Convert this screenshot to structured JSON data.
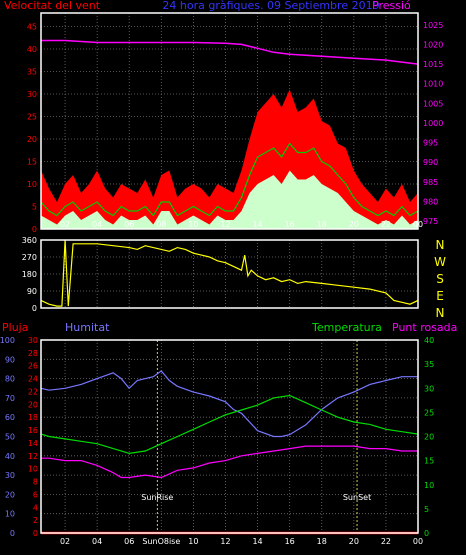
{
  "colors": {
    "background": "#000000",
    "frame": "#ffffff",
    "grid": "#6f6f6f",
    "wind_max": "#ff0000",
    "wind_avg": "#00cc00",
    "wind_min": "#ccffcc",
    "pressure": "#ff00ff",
    "title": "#3333ff",
    "direction": "#ffff00",
    "rain": "#ff0000",
    "humidity": "#7777ff",
    "temperature": "#00dd00",
    "dewpoint": "#ff00ff",
    "sun_line": "#ffff66"
  },
  "chart_data": [
    {
      "type": "line",
      "id": "wind-pressure",
      "title": "24 hora gràfiques. 09 Septiembre 2019",
      "left_label": "Velocitat del vent",
      "right_label": "Pressió",
      "x_ticks": [
        "02",
        "04",
        "06",
        "08",
        "10",
        "12",
        "14",
        "16",
        "18",
        "20",
        "22",
        "00"
      ],
      "y_left_ticks": [
        "0",
        "5",
        "10",
        "15",
        "20",
        "25",
        "30",
        "35",
        "40",
        "45"
      ],
      "y_right_ticks": [
        "975",
        "980",
        "985",
        "990",
        "995",
        "1000",
        "1005",
        "1010",
        "1015",
        "1020",
        "1025"
      ],
      "ylim_left": [
        0,
        48
      ],
      "ylim_right": [
        973,
        1028
      ],
      "x_hours": [
        0.5,
        24
      ],
      "series": [
        {
          "name": "Ràfega",
          "axis": "left",
          "color_key": "wind_max",
          "x": [
            0.5,
            1,
            1.5,
            2,
            2.5,
            3,
            3.5,
            4,
            4.5,
            5,
            5.5,
            6,
            6.5,
            7,
            7.5,
            8,
            8.5,
            9,
            9.5,
            10,
            10.5,
            11,
            11.5,
            12,
            12.5,
            13,
            13.5,
            14,
            14.5,
            15,
            15.5,
            16,
            16.5,
            17,
            17.5,
            18,
            18.5,
            19,
            19.5,
            20,
            20.5,
            21,
            21.5,
            22,
            22.5,
            23,
            23.5,
            24
          ],
          "values": [
            13,
            9,
            6,
            10,
            12,
            8,
            10,
            13,
            9,
            7,
            10,
            9,
            8,
            11,
            7,
            12,
            13,
            7,
            9,
            10,
            9,
            7,
            10,
            9,
            8,
            13,
            20,
            26,
            28,
            30,
            27,
            31,
            26,
            27,
            29,
            24,
            23,
            19,
            18,
            13,
            10,
            8,
            6,
            9,
            7,
            10,
            6,
            8
          ]
        },
        {
          "name": "Velocitat mitjana",
          "axis": "left",
          "color_key": "wind_avg",
          "x": [
            0.5,
            1,
            1.5,
            2,
            2.5,
            3,
            3.5,
            4,
            4.5,
            5,
            5.5,
            6,
            6.5,
            7,
            7.5,
            8,
            8.5,
            9,
            9.5,
            10,
            10.5,
            11,
            11.5,
            12,
            12.5,
            13,
            13.5,
            14,
            14.5,
            15,
            15.5,
            16,
            16.5,
            17,
            17.5,
            18,
            18.5,
            19,
            19.5,
            20,
            20.5,
            21,
            21.5,
            22,
            22.5,
            23,
            23.5,
            24
          ],
          "values": [
            6,
            4,
            3,
            5,
            6,
            4,
            5,
            6,
            4,
            3,
            5,
            4,
            4,
            5,
            3,
            6,
            6,
            3,
            4,
            5,
            4,
            3,
            5,
            4,
            4,
            7,
            12,
            16,
            17,
            18,
            16,
            19,
            17,
            17,
            18,
            15,
            14,
            12,
            10,
            7,
            5,
            4,
            3,
            4,
            3,
            5,
            3,
            4
          ]
        },
        {
          "name": "Velocitat mínima",
          "axis": "left",
          "color_key": "wind_min",
          "x": [
            0.5,
            1,
            1.5,
            2,
            2.5,
            3,
            3.5,
            4,
            4.5,
            5,
            5.5,
            6,
            6.5,
            7,
            7.5,
            8,
            8.5,
            9,
            9.5,
            10,
            10.5,
            11,
            11.5,
            12,
            12.5,
            13,
            13.5,
            14,
            14.5,
            15,
            15.5,
            16,
            16.5,
            17,
            17.5,
            18,
            18.5,
            19,
            19.5,
            20,
            20.5,
            21,
            21.5,
            22,
            22.5,
            23,
            23.5,
            24
          ],
          "values": [
            3,
            2,
            1,
            3,
            4,
            2,
            3,
            4,
            2,
            1,
            3,
            2,
            2,
            3,
            1,
            4,
            4,
            1,
            2,
            3,
            2,
            1,
            3,
            2,
            2,
            4,
            8,
            10,
            11,
            12,
            10,
            13,
            11,
            11,
            12,
            10,
            9,
            8,
            6,
            4,
            3,
            2,
            1,
            2,
            1,
            3,
            1,
            2
          ]
        },
        {
          "name": "Pressió",
          "axis": "right",
          "color_key": "pressure",
          "x": [
            0.5,
            2,
            4,
            6,
            8,
            10,
            12,
            13,
            14,
            15,
            16,
            18,
            20,
            22,
            23,
            24
          ],
          "values": [
            1021,
            1021,
            1020.5,
            1020.5,
            1020.5,
            1020.5,
            1020.3,
            1020,
            1019,
            1018,
            1017.5,
            1017,
            1016.5,
            1016,
            1015.5,
            1015
          ]
        }
      ]
    },
    {
      "type": "line",
      "id": "wind-direction",
      "right_labels": [
        "N",
        "W",
        "S",
        "E",
        "N"
      ],
      "x_ticks": [
        "02",
        "04",
        "06",
        "08",
        "10",
        "12",
        "14",
        "16",
        "18",
        "20",
        "22",
        "00"
      ],
      "y_ticks": [
        "0",
        "90",
        "180",
        "270",
        "360"
      ],
      "ylim": [
        0,
        360
      ],
      "series": [
        {
          "name": "Direcció",
          "color_key": "direction",
          "x": [
            0.5,
            1,
            1.5,
            1.8,
            2,
            2.2,
            2.5,
            3,
            4,
            5,
            6,
            6.5,
            7,
            8,
            8.5,
            9,
            9.5,
            10,
            10.5,
            11,
            11.5,
            12,
            12.5,
            13,
            13.2,
            13.4,
            13.6,
            14,
            14.5,
            15,
            15.5,
            16,
            16.5,
            17,
            18,
            19,
            20,
            21,
            22,
            22.5,
            23,
            23.5,
            24
          ],
          "values": [
            40,
            20,
            10,
            10,
            360,
            10,
            340,
            340,
            340,
            330,
            320,
            310,
            330,
            310,
            300,
            320,
            310,
            290,
            280,
            270,
            250,
            240,
            220,
            200,
            280,
            170,
            200,
            170,
            150,
            160,
            140,
            150,
            130,
            140,
            130,
            120,
            110,
            100,
            80,
            40,
            30,
            20,
            40
          ]
        }
      ]
    },
    {
      "type": "line",
      "id": "temp-humidity",
      "labels": {
        "rain": "Pluja",
        "humidity": "Humitat",
        "temperature": "Temperatura",
        "dewpoint": "Punt rosada"
      },
      "x_ticks": [
        "02",
        "04",
        "06",
        "SunO8ise",
        "10",
        "12",
        "14",
        "16",
        "18",
        "20",
        "22",
        "00"
      ],
      "y_rain_ticks": [
        "0",
        "2",
        "4",
        "6",
        "8",
        "10",
        "12",
        "14",
        "16",
        "18",
        "20",
        "22",
        "24",
        "26",
        "28",
        "30"
      ],
      "y_humidity_ticks": [
        "0",
        "10",
        "20",
        "30",
        "40",
        "50",
        "60",
        "70",
        "80",
        "90",
        "100"
      ],
      "y_temp_ticks": [
        "0",
        "5",
        "10",
        "15",
        "20",
        "25",
        "30",
        "35",
        "40"
      ],
      "ylim_rain": [
        0,
        30
      ],
      "ylim_humidity": [
        0,
        100
      ],
      "ylim_temp": [
        0,
        40
      ],
      "annotations": [
        {
          "text": "SunRise",
          "x_hour": 7.75
        },
        {
          "text": "SunSet",
          "x_hour": 20.2
        }
      ],
      "series": [
        {
          "name": "Pluja",
          "axis": "rain",
          "color_key": "rain",
          "x": [
            0.5,
            24
          ],
          "values": [
            0,
            0
          ]
        },
        {
          "name": "Humitat",
          "axis": "humidity",
          "color_key": "humidity",
          "x": [
            0.5,
            1,
            2,
            3,
            4,
            5,
            5.5,
            6,
            6.5,
            7,
            7.5,
            8,
            8.5,
            9,
            10,
            11,
            12,
            12.5,
            13,
            14,
            15,
            15.5,
            16,
            17,
            17.5,
            18,
            19,
            20,
            21,
            22,
            23,
            24
          ],
          "values": [
            75,
            74,
            75,
            77,
            80,
            83,
            80,
            75,
            79,
            80,
            81,
            84,
            79,
            76,
            73,
            71,
            68,
            64,
            62,
            53,
            50,
            50,
            51,
            56,
            60,
            64,
            70,
            73,
            77,
            79,
            81,
            81
          ]
        },
        {
          "name": "Temperatura",
          "axis": "temp",
          "color_key": "temperature",
          "x": [
            0.5,
            1,
            2,
            3,
            4,
            5,
            6,
            7,
            8,
            9,
            10,
            11,
            12,
            13,
            14,
            15,
            16,
            17,
            18,
            19,
            20,
            21,
            22,
            23,
            24
          ],
          "values": [
            20.5,
            20,
            19.5,
            19,
            18.5,
            17.5,
            16.5,
            17,
            18.5,
            20,
            21.5,
            23,
            24.5,
            25.5,
            26.5,
            28,
            28.5,
            27,
            25.5,
            24,
            23,
            22.5,
            21.5,
            21,
            20.5
          ]
        },
        {
          "name": "Punt rosada",
          "axis": "temp",
          "color_key": "dewpoint",
          "x": [
            0.5,
            1,
            2,
            3,
            4,
            5,
            5.5,
            6,
            7,
            8,
            9,
            10,
            11,
            12,
            13,
            14,
            15,
            16,
            17,
            18,
            19,
            20,
            21,
            22,
            23,
            24
          ],
          "values": [
            15.5,
            15.5,
            15,
            15,
            14,
            12.5,
            11.5,
            11.5,
            12,
            11.5,
            13,
            13.5,
            14.5,
            15,
            16,
            16.5,
            17,
            17.5,
            18,
            18,
            18,
            18,
            17.5,
            17.5,
            17,
            17
          ]
        }
      ]
    }
  ]
}
